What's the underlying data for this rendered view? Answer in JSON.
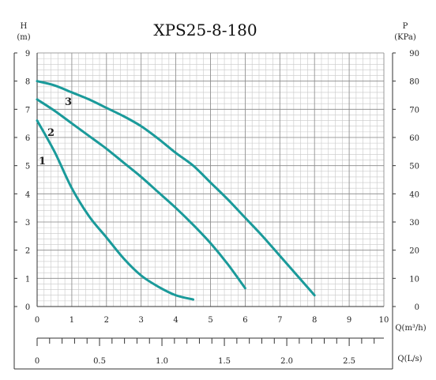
{
  "chart_data": {
    "type": "line",
    "title": "XPS25-8-180",
    "left_axis": {
      "name": "H",
      "unit": "(m)",
      "ylim": [
        0,
        9
      ],
      "ticks": [
        "0",
        "1",
        "2",
        "3",
        "4",
        "5",
        "6",
        "7",
        "8",
        "9"
      ]
    },
    "right_axis": {
      "name": "P",
      "unit": "(KPa)",
      "ylim": [
        0,
        90
      ],
      "ticks": [
        "0",
        "10",
        "20",
        "30",
        "40",
        "50",
        "60",
        "70",
        "80",
        "90"
      ]
    },
    "x_axis": {
      "label": "Q(m³/h)",
      "xlim": [
        0,
        10
      ],
      "ticks": [
        "0",
        "1",
        "2",
        "3",
        "4",
        "5",
        "6",
        "7",
        "8",
        "9",
        "10"
      ]
    },
    "x2_axis": {
      "label": "Q(L/s)",
      "xlim": [
        0,
        2.7778
      ],
      "ticks": [
        "0",
        "0.5",
        "1.0",
        "1.5",
        "2.0",
        "2.5"
      ]
    },
    "grid": true,
    "series": [
      {
        "name": "1",
        "color": "#1a9a9a",
        "x": [
          0,
          0.5,
          1,
          1.5,
          2,
          2.5,
          3,
          3.5,
          4,
          4.5
        ],
        "y": [
          6.6,
          5.5,
          4.2,
          3.2,
          2.45,
          1.7,
          1.1,
          0.7,
          0.4,
          0.25
        ]
      },
      {
        "name": "2",
        "color": "#1a9a9a",
        "x": [
          0,
          0.5,
          1,
          1.5,
          2,
          2.5,
          3,
          3.5,
          4,
          4.5,
          5,
          5.5,
          6
        ],
        "y": [
          7.35,
          6.95,
          6.5,
          6.05,
          5.6,
          5.1,
          4.6,
          4.05,
          3.5,
          2.9,
          2.25,
          1.5,
          0.65
        ]
      },
      {
        "name": "3",
        "color": "#1a9a9a",
        "x": [
          0,
          0.5,
          1,
          1.5,
          2,
          2.5,
          3,
          3.5,
          4,
          4.5,
          5,
          5.5,
          6,
          6.5,
          7,
          7.5,
          8
        ],
        "y": [
          8.0,
          7.85,
          7.6,
          7.35,
          7.05,
          6.75,
          6.4,
          5.95,
          5.45,
          5.0,
          4.4,
          3.8,
          3.15,
          2.5,
          1.8,
          1.1,
          0.4
        ]
      }
    ]
  }
}
